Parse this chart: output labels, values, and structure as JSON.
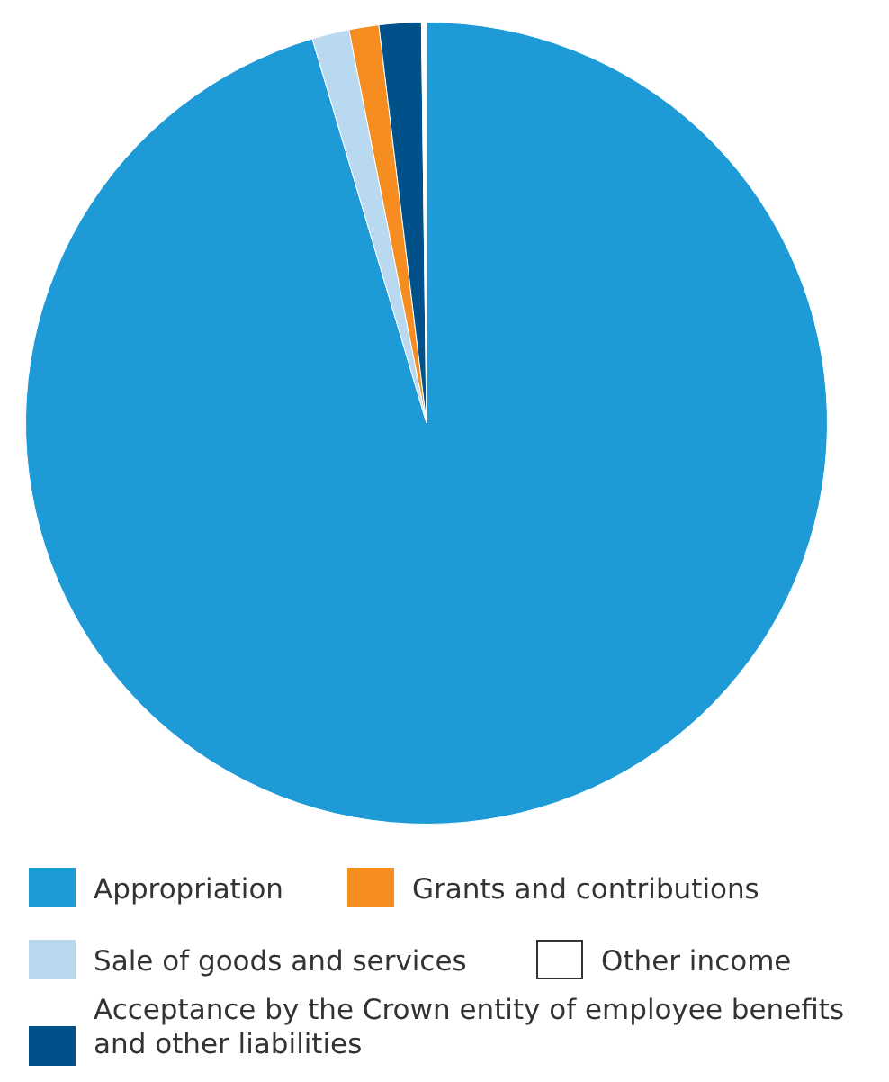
{
  "chart_data": {
    "type": "pie",
    "categories": [
      "Appropriation",
      "Sale of goods and services",
      "Grants and contributions",
      "Acceptance by the Crown entity of employee benefits and other liabilities",
      "Other income"
    ],
    "values": [
      95.4,
      1.5,
      1.2,
      1.7,
      0.2
    ],
    "colors": [
      "#1e9ad6",
      "#b8d9ef",
      "#f58d20",
      "#00518a",
      "#ffffff"
    ],
    "legend": "bottom"
  }
}
